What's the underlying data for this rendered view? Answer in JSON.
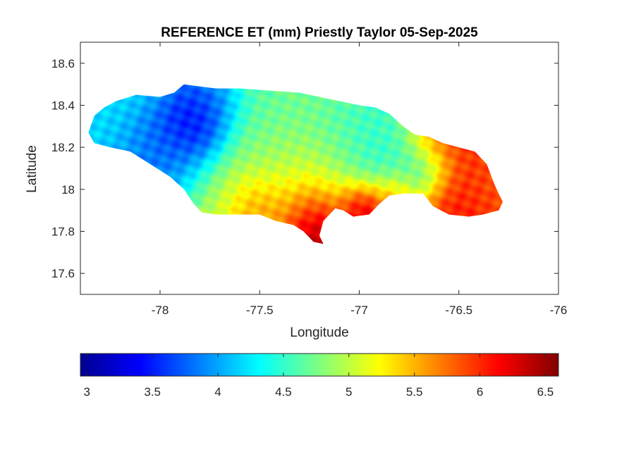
{
  "map": {
    "title": "REFERENCE ET (mm) Priestly Taylor 05-Sep-2025",
    "xlabel": "Longitude",
    "ylabel": "Latitude",
    "xlim": [
      -78.4,
      -76
    ],
    "ylim": [
      17.5,
      18.7
    ],
    "x_ticks": [
      -78,
      -77.5,
      -77,
      -76.5,
      -76
    ],
    "y_ticks": [
      17.6,
      17.8,
      18,
      18.2,
      18.4,
      18.6
    ],
    "colormap": "jet",
    "color_range": [
      2.95,
      6.6
    ],
    "colorbar_ticks": [
      3,
      3.5,
      4,
      4.5,
      5,
      5.5,
      6,
      6.5
    ],
    "outline": [
      [
        -78.36,
        18.27
      ],
      [
        -78.33,
        18.35
      ],
      [
        -78.28,
        18.39
      ],
      [
        -78.22,
        18.42
      ],
      [
        -78.12,
        18.45
      ],
      [
        -78.0,
        18.44
      ],
      [
        -77.93,
        18.46
      ],
      [
        -77.88,
        18.5
      ],
      [
        -77.8,
        18.49
      ],
      [
        -77.72,
        18.48
      ],
      [
        -77.6,
        18.48
      ],
      [
        -77.45,
        18.47
      ],
      [
        -77.3,
        18.46
      ],
      [
        -77.2,
        18.44
      ],
      [
        -77.1,
        18.42
      ],
      [
        -77.0,
        18.4
      ],
      [
        -76.92,
        18.39
      ],
      [
        -76.85,
        18.36
      ],
      [
        -76.78,
        18.3
      ],
      [
        -76.72,
        18.26
      ],
      [
        -76.65,
        18.25
      ],
      [
        -76.58,
        18.22
      ],
      [
        -76.5,
        18.2
      ],
      [
        -76.42,
        18.18
      ],
      [
        -76.36,
        18.12
      ],
      [
        -76.32,
        18.02
      ],
      [
        -76.28,
        17.94
      ],
      [
        -76.3,
        17.9
      ],
      [
        -76.38,
        17.88
      ],
      [
        -76.45,
        17.87
      ],
      [
        -76.55,
        17.88
      ],
      [
        -76.63,
        17.92
      ],
      [
        -76.68,
        17.98
      ],
      [
        -76.78,
        17.98
      ],
      [
        -76.85,
        17.97
      ],
      [
        -76.9,
        17.93
      ],
      [
        -76.95,
        17.88
      ],
      [
        -77.03,
        17.87
      ],
      [
        -77.08,
        17.9
      ],
      [
        -77.12,
        17.91
      ],
      [
        -77.18,
        17.85
      ],
      [
        -77.2,
        17.78
      ],
      [
        -77.18,
        17.74
      ],
      [
        -77.23,
        17.75
      ],
      [
        -77.28,
        17.8
      ],
      [
        -77.33,
        17.83
      ],
      [
        -77.42,
        17.85
      ],
      [
        -77.5,
        17.88
      ],
      [
        -77.6,
        17.88
      ],
      [
        -77.72,
        17.88
      ],
      [
        -77.79,
        17.89
      ],
      [
        -77.83,
        17.93
      ],
      [
        -77.88,
        18.0
      ],
      [
        -77.95,
        18.06
      ],
      [
        -78.05,
        18.12
      ],
      [
        -78.15,
        18.18
      ],
      [
        -78.25,
        18.2
      ],
      [
        -78.33,
        18.22
      ]
    ],
    "field": [
      {
        "lon": -78.2,
        "lat": 18.3,
        "value": 4.2,
        "spread": 0.22
      },
      {
        "lon": -77.83,
        "lat": 18.29,
        "value": 3.0,
        "spread": 0.1
      },
      {
        "lon": -77.95,
        "lat": 18.22,
        "value": 3.45,
        "spread": 0.12
      },
      {
        "lon": -77.75,
        "lat": 18.4,
        "value": 3.6,
        "spread": 0.1
      },
      {
        "lon": -78.05,
        "lat": 18.12,
        "value": 3.8,
        "spread": 0.12
      },
      {
        "lon": -77.9,
        "lat": 18.1,
        "value": 4.0,
        "spread": 0.12
      },
      {
        "lon": -77.5,
        "lat": 18.35,
        "value": 4.6,
        "spread": 0.18
      },
      {
        "lon": -77.2,
        "lat": 18.4,
        "value": 4.8,
        "spread": 0.18
      },
      {
        "lon": -77.0,
        "lat": 18.3,
        "value": 4.4,
        "spread": 0.15
      },
      {
        "lon": -76.8,
        "lat": 18.22,
        "value": 4.6,
        "spread": 0.12
      },
      {
        "lon": -76.68,
        "lat": 18.1,
        "value": 3.9,
        "spread": 0.09
      },
      {
        "lon": -76.9,
        "lat": 18.15,
        "value": 4.2,
        "spread": 0.1
      },
      {
        "lon": -77.5,
        "lat": 18.1,
        "value": 4.9,
        "spread": 0.16
      },
      {
        "lon": -77.3,
        "lat": 18.05,
        "value": 5.2,
        "spread": 0.14
      },
      {
        "lon": -77.0,
        "lat": 18.08,
        "value": 5.0,
        "spread": 0.14
      },
      {
        "lon": -77.75,
        "lat": 17.98,
        "value": 5.1,
        "spread": 0.12
      },
      {
        "lon": -77.5,
        "lat": 17.93,
        "value": 5.9,
        "spread": 0.1
      },
      {
        "lon": -77.25,
        "lat": 17.9,
        "value": 6.2,
        "spread": 0.1
      },
      {
        "lon": -77.22,
        "lat": 17.8,
        "value": 6.6,
        "spread": 0.08
      },
      {
        "lon": -77.0,
        "lat": 17.93,
        "value": 6.3,
        "spread": 0.08
      },
      {
        "lon": -76.97,
        "lat": 17.9,
        "value": 6.6,
        "spread": 0.06
      },
      {
        "lon": -76.62,
        "lat": 18.22,
        "value": 6.2,
        "spread": 0.1
      },
      {
        "lon": -76.5,
        "lat": 18.1,
        "value": 6.0,
        "spread": 0.14
      },
      {
        "lon": -76.5,
        "lat": 17.95,
        "value": 6.1,
        "spread": 0.1
      },
      {
        "lon": -76.35,
        "lat": 18.02,
        "value": 5.8,
        "spread": 0.1
      },
      {
        "lon": -76.82,
        "lat": 17.98,
        "value": 5.8,
        "spread": 0.08
      }
    ]
  }
}
